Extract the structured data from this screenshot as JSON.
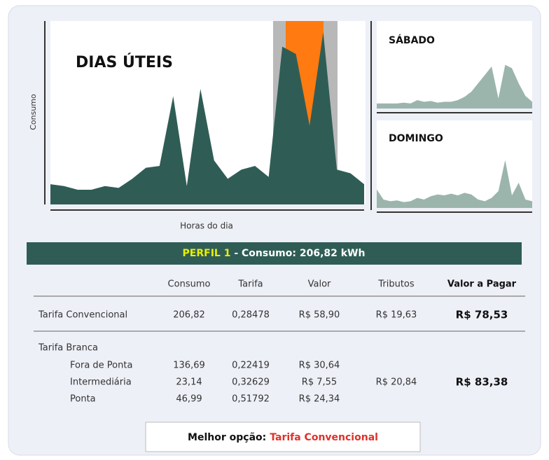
{
  "chart_data": [
    {
      "type": "area",
      "title": "DIAS ÚTEIS",
      "y_label": "Consumo",
      "x_label": "Horas do dia",
      "color": "#2f5d55",
      "categories": [
        null,
        null,
        null,
        null,
        null,
        null,
        null,
        null,
        null,
        null,
        null,
        null,
        null,
        null,
        null,
        null,
        null,
        null,
        null,
        null,
        null,
        null,
        null,
        null
      ],
      "values": [
        11,
        10,
        8,
        8,
        10,
        9,
        14,
        20,
        21,
        59,
        10,
        63,
        24,
        14,
        19,
        21,
        15,
        86,
        82,
        43,
        94,
        19,
        17,
        11
      ],
      "ylim": [
        0,
        100
      ]
    },
    {
      "type": "area",
      "title": "SÁBADO",
      "color": "#9bb5ad",
      "categories": [
        null,
        null,
        null,
        null,
        null,
        null,
        null,
        null,
        null,
        null,
        null,
        null,
        null,
        null,
        null,
        null,
        null,
        null,
        null,
        null,
        null,
        null,
        null,
        null
      ],
      "values": [
        6,
        6,
        6,
        6,
        7,
        6,
        10,
        8,
        9,
        7,
        8,
        8,
        10,
        14,
        20,
        30,
        40,
        50,
        12,
        52,
        48,
        30,
        15,
        8
      ],
      "ylim": [
        0,
        100
      ]
    },
    {
      "type": "area",
      "title": "DOMINGO",
      "color": "#9bb5ad",
      "categories": [
        null,
        null,
        null,
        null,
        null,
        null,
        null,
        null,
        null,
        null,
        null,
        null,
        null,
        null,
        null,
        null,
        null,
        null,
        null,
        null,
        null,
        null,
        null,
        null
      ],
      "values": [
        22,
        10,
        8,
        9,
        7,
        8,
        12,
        10,
        14,
        16,
        15,
        17,
        15,
        18,
        16,
        10,
        8,
        12,
        20,
        57,
        15,
        30,
        10,
        8
      ],
      "ylim": [
        0,
        100
      ]
    }
  ],
  "table": {
    "title_highlight": "PERFIL 1",
    "title_rest": " - Consumo: 206,82 kWh",
    "headers": [
      "Consumo",
      "Tarifa",
      "Valor",
      "Tributos",
      "Valor a Pagar"
    ],
    "convencional": {
      "label": "Tarifa Convencional",
      "cells": [
        "206,82",
        "0,28478",
        "R$ 58,90",
        "R$ 19,63",
        "R$ 78,53"
      ]
    },
    "branca": {
      "label": "Tarifa Branca",
      "rows": [
        [
          "Fora de Ponta",
          "136,69",
          "0,22419",
          "R$ 30,64"
        ],
        [
          "Intermediária",
          "23,14",
          "0,32629",
          "R$ 7,55"
        ],
        [
          "Ponta",
          "46,99",
          "0,51792",
          "R$ 24,34"
        ]
      ],
      "tributos": "R$ 20,84",
      "total": "R$ 83,38"
    },
    "footer_label": "Melhor opção:",
    "footer_value": "Tarifa Convencional"
  }
}
